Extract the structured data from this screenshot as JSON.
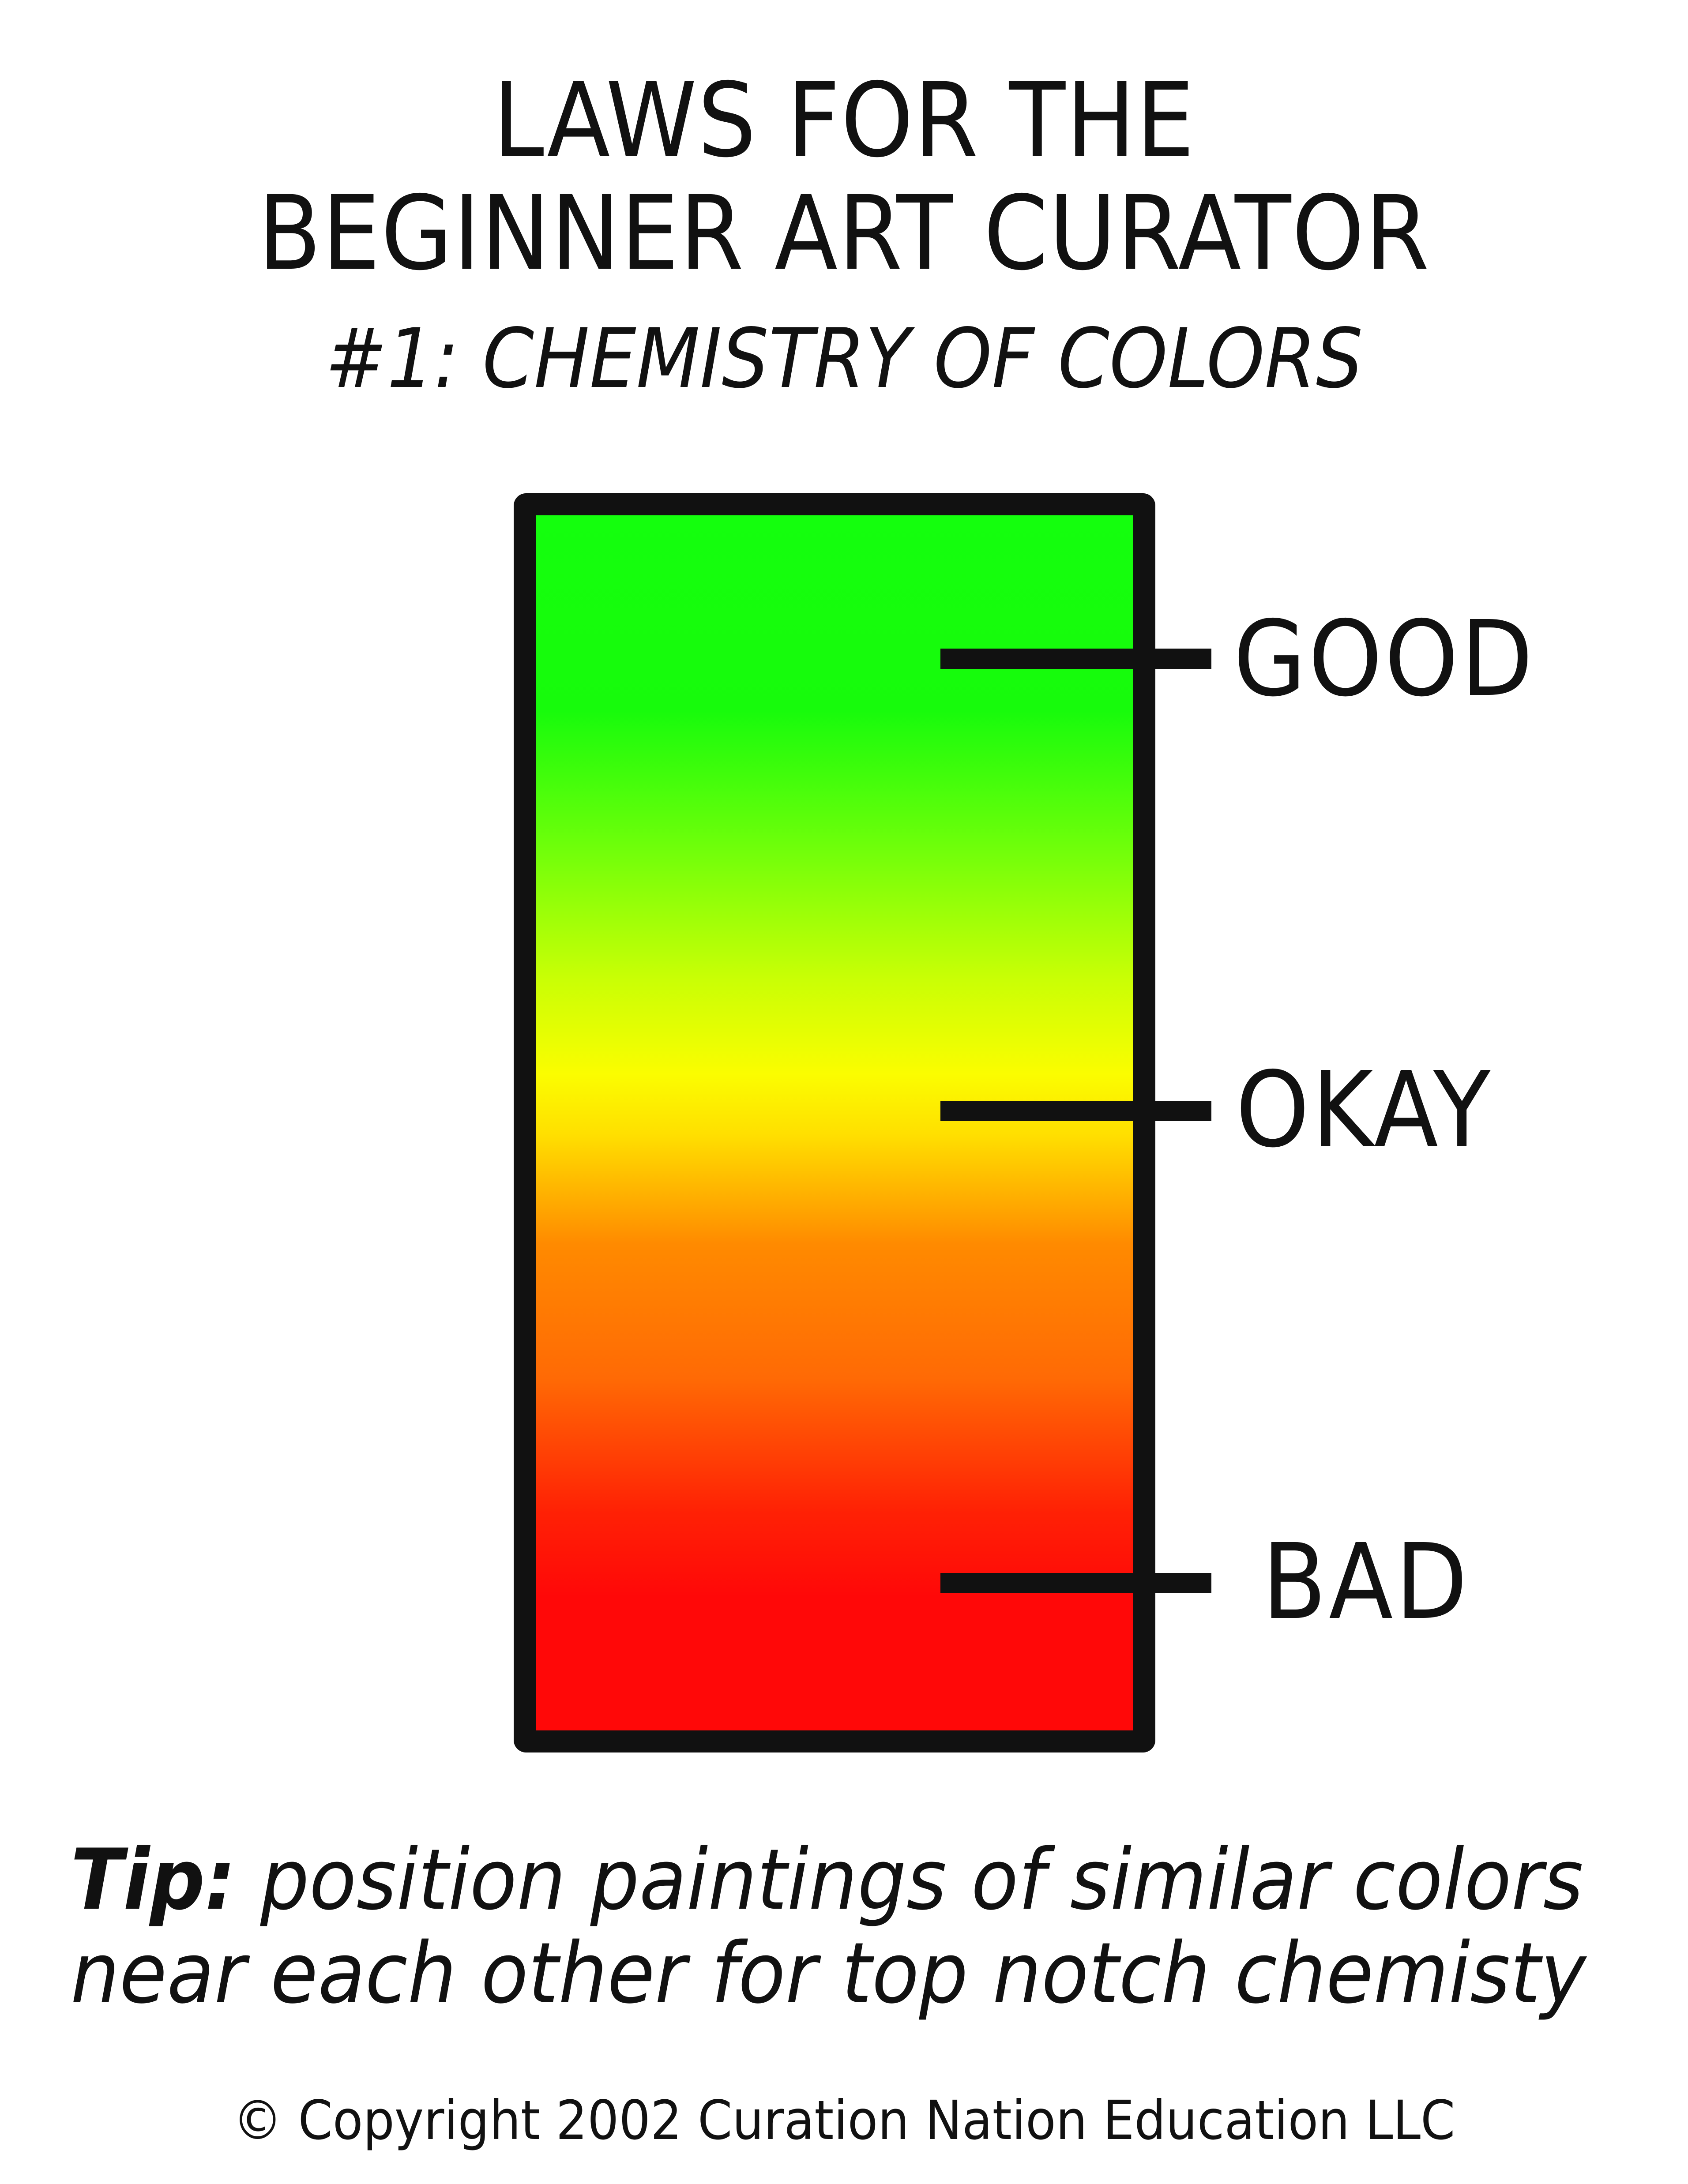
{
  "title": {
    "line1": "LAWS FOR THE",
    "line2": "BEGINNER ART CURATOR"
  },
  "subtitle": "#1: CHEMISTRY OF COLORS",
  "scale": {
    "gradient_colors": [
      "#14ff0d",
      "#fbfd00",
      "#ff8a00",
      "#ff0808"
    ],
    "border_color": "#111111",
    "levels": [
      {
        "label": "GOOD"
      },
      {
        "label": "OKAY"
      },
      {
        "label": "BAD"
      }
    ]
  },
  "tip": {
    "lead": "Tip:",
    "line1_rest": " position paintings of similar colors",
    "line2": "near each other for top notch chemisty"
  },
  "copyright": "© Copyright 2002 Curation Nation Education LLC"
}
